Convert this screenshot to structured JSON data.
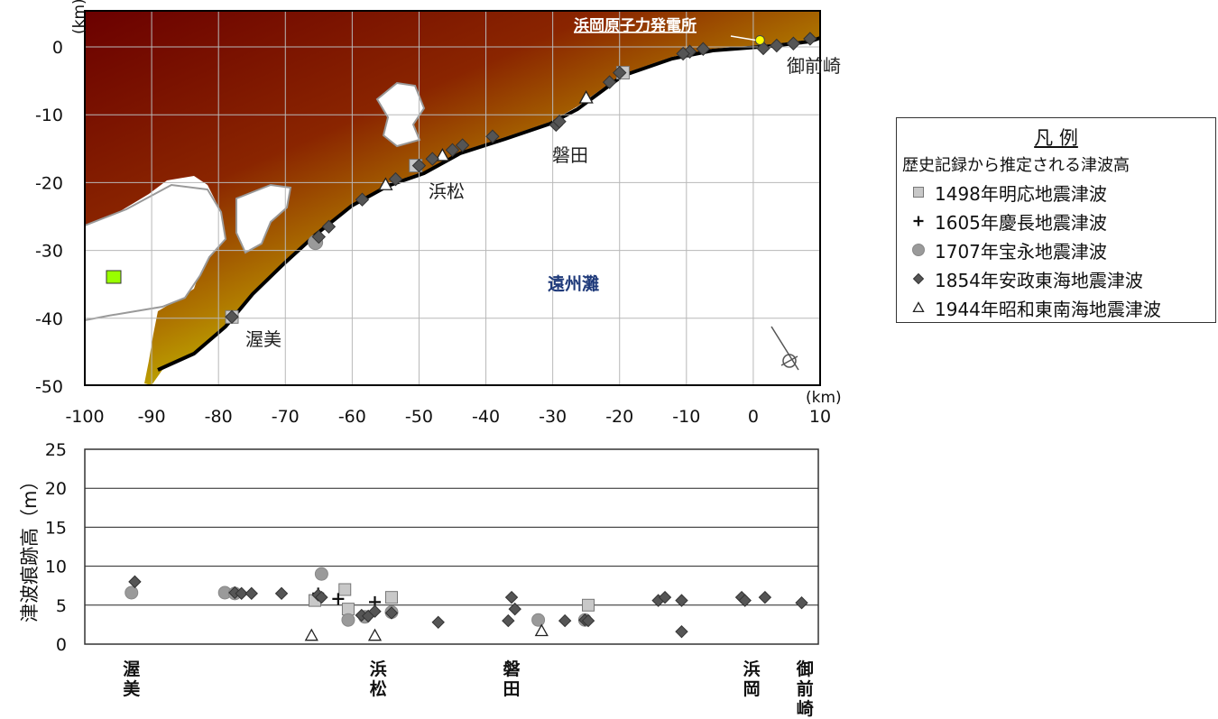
{
  "map": {
    "plant_label": "浜岡原子力発電所",
    "sea_label": "遠州灘",
    "unit_top": "(km)",
    "unit_right": "(km)",
    "x_ticks": [
      "-100",
      "-90",
      "-80",
      "-70",
      "-60",
      "-50",
      "-40",
      "-30",
      "-20",
      "-10",
      "0",
      "10"
    ],
    "y_ticks": [
      "0",
      "-10",
      "-20",
      "-30",
      "-40",
      "-50"
    ],
    "places": {
      "omaezaki": "御前崎",
      "iwata": "磐田",
      "hamamatsu": "浜松",
      "atsumi": "渥美"
    }
  },
  "legend": {
    "title": "凡 例",
    "subtitle": "歴史記録から推定される津波高",
    "items": [
      {
        "marker": "square",
        "label": "1498年明応地震津波"
      },
      {
        "marker": "plus",
        "label": "1605年慶長地震津波"
      },
      {
        "marker": "circle",
        "label": "1707年宝永地震津波"
      },
      {
        "marker": "diamond",
        "label": "1854年安政東海地震津波"
      },
      {
        "marker": "triangle",
        "label": "1944年昭和東南海地震津波"
      }
    ]
  },
  "chart_data": {
    "type": "scatter",
    "ylabel": "津波痕跡高（m）",
    "ylim": [
      0,
      25
    ],
    "y_ticks": [
      "0",
      "5",
      "10",
      "15",
      "20",
      "25"
    ],
    "xlim": [
      -100,
      10
    ],
    "x_category_labels": [
      {
        "x": -93,
        "label": "渥\n美"
      },
      {
        "x": -56,
        "label": "浜\n松"
      },
      {
        "x": -36,
        "label": "磐\n田"
      },
      {
        "x": 0,
        "label": "浜\n岡"
      },
      {
        "x": 8,
        "label": "御\n前\n崎"
      }
    ],
    "grid": true,
    "legend": "right",
    "series": [
      {
        "name": "1498年明応地震津波",
        "marker": "square",
        "x": [
          -65.5,
          -61,
          -60.5,
          -54,
          -24.5
        ],
        "y": [
          5.6,
          7.0,
          4.5,
          6.0,
          5.0
        ]
      },
      {
        "name": "1605年慶長地震津波",
        "marker": "plus",
        "x": [
          -65,
          -62,
          -56.5
        ],
        "y": [
          6.5,
          5.8,
          5.4
        ]
      },
      {
        "name": "1707年宝永地震津波",
        "marker": "circle",
        "x": [
          -93,
          -79,
          -77.5,
          -64.5,
          -60.5,
          -58,
          -54,
          -32,
          -25
        ],
        "y": [
          6.6,
          6.6,
          6.5,
          9.0,
          3.1,
          3.5,
          4.1,
          3.1,
          3.1
        ]
      },
      {
        "name": "1854年安政東海地震津波",
        "marker": "diamond",
        "x": [
          -92.5,
          -77.5,
          -76.5,
          -75,
          -70.5,
          -65,
          -64.5,
          -58.5,
          -57.5,
          -56.5,
          -54,
          -47,
          -36.5,
          -36,
          -35.5,
          -28,
          -25,
          -24.5,
          -14,
          -13,
          -10.5,
          -10.5,
          -1.5,
          -1,
          2,
          7.5
        ],
        "y": [
          8.0,
          6.6,
          6.5,
          6.5,
          6.5,
          6.3,
          6.0,
          3.7,
          3.6,
          4.2,
          4.0,
          2.8,
          3.0,
          6.0,
          4.5,
          3.0,
          3.1,
          3.0,
          5.6,
          6.0,
          5.6,
          1.6,
          6.0,
          5.6,
          6.0,
          5.3
        ]
      },
      {
        "name": "1944年昭和東南海地震津波",
        "marker": "triangle",
        "x": [
          -66,
          -56.5,
          -31.5
        ],
        "y": [
          1.1,
          1.1,
          1.7
        ]
      }
    ]
  },
  "map_data": {
    "sites": [
      {
        "marker": "diamond",
        "x": 8.5,
        "y": 1.2
      },
      {
        "marker": "diamond",
        "x": 6,
        "y": 0.5
      },
      {
        "marker": "diamond",
        "x": 3.5,
        "y": 0.2
      },
      {
        "marker": "diamond",
        "x": 1.5,
        "y": -0.2
      },
      {
        "marker": "diamond",
        "x": -7.5,
        "y": -0.3
      },
      {
        "marker": "diamond",
        "x": -9.5,
        "y": -0.7
      },
      {
        "marker": "diamond",
        "x": -10.5,
        "y": -1
      },
      {
        "marker": "square",
        "x": -19.5,
        "y": -3.8
      },
      {
        "marker": "diamond",
        "x": -20,
        "y": -3.8
      },
      {
        "marker": "diamond",
        "x": -21.5,
        "y": -5.2
      },
      {
        "marker": "triangle",
        "x": -25,
        "y": -7.5
      },
      {
        "marker": "diamond",
        "x": -29.5,
        "y": -11.5
      },
      {
        "marker": "diamond",
        "x": -29,
        "y": -11
      },
      {
        "marker": "diamond",
        "x": -39,
        "y": -13.2
      },
      {
        "marker": "diamond",
        "x": -43.5,
        "y": -14.5
      },
      {
        "marker": "diamond",
        "x": -45,
        "y": -15.2
      },
      {
        "marker": "triangle",
        "x": -46.5,
        "y": -16
      },
      {
        "marker": "diamond",
        "x": -48,
        "y": -16.5
      },
      {
        "marker": "square",
        "x": -50.5,
        "y": -17.5
      },
      {
        "marker": "diamond",
        "x": -50,
        "y": -17.5
      },
      {
        "marker": "diamond",
        "x": -53.5,
        "y": -19.5
      },
      {
        "marker": "triangle",
        "x": -55,
        "y": -20.3
      },
      {
        "marker": "diamond",
        "x": -58.5,
        "y": -22.5
      },
      {
        "marker": "diamond",
        "x": -63.5,
        "y": -26.5
      },
      {
        "marker": "circle",
        "x": -65.5,
        "y": -28.8
      },
      {
        "marker": "diamond",
        "x": -65,
        "y": -28
      },
      {
        "marker": "square",
        "x": -78,
        "y": -39.8
      },
      {
        "marker": "diamond",
        "x": -78,
        "y": -39.8
      }
    ],
    "plant": {
      "x": 1,
      "y": 1
    }
  }
}
